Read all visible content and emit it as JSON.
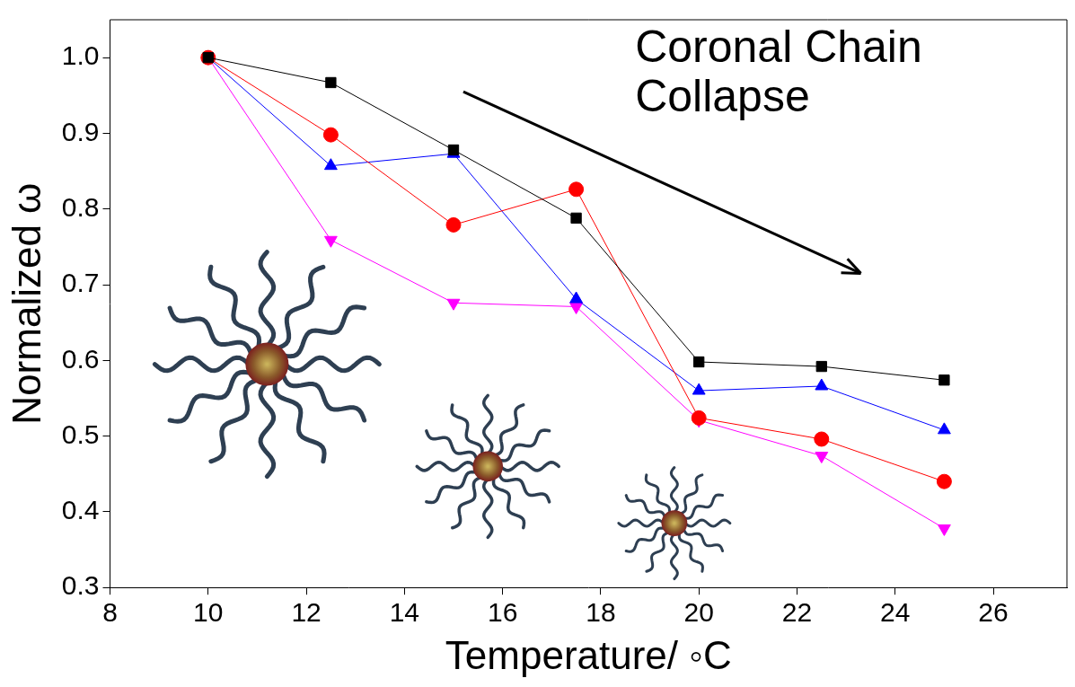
{
  "chart_data": {
    "type": "line",
    "annotation": "Coronal Chain Collapse",
    "x_label": "Temperature/ ◦C",
    "y_label": "Normalized ω",
    "x": [
      10,
      12.5,
      15,
      17.5,
      20,
      22.5,
      25
    ],
    "series": [
      {
        "color": "#000000",
        "marker": "square",
        "values": [
          1.0,
          0.967,
          0.878,
          0.788,
          0.598,
          0.592,
          0.574
        ]
      },
      {
        "color": "#ff0000",
        "marker": "circle",
        "values": [
          1.0,
          0.898,
          0.779,
          0.826,
          0.524,
          0.496,
          0.44
        ]
      },
      {
        "color": "#0000ff",
        "marker": "triangle",
        "values": [
          1.0,
          0.857,
          0.873,
          0.681,
          0.56,
          0.566,
          0.508
        ]
      },
      {
        "color": "#ff00ff",
        "marker": "triangle_down",
        "values": [
          1.0,
          0.759,
          0.676,
          0.671,
          0.521,
          0.474,
          0.378
        ]
      }
    ],
    "xlim": [
      8,
      27.5
    ],
    "xticks": [
      8,
      10,
      12,
      14,
      16,
      18,
      20,
      22,
      24,
      26
    ],
    "ylim": [
      0.3,
      1.05
    ],
    "yticks": [
      0.3,
      0.4,
      0.5,
      0.6,
      0.7,
      0.8,
      0.9,
      {
        "value": 1,
        "label": "1.0"
      }
    ],
    "grid": false
  }
}
